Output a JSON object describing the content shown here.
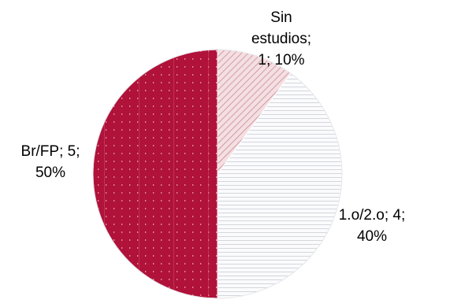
{
  "chart_data": {
    "type": "pie",
    "title": "",
    "slices": [
      {
        "label": "Sin estudios",
        "value": 1,
        "percent": "10%",
        "label_lines": [
          "Sin",
          "estudios;",
          "1; 10%"
        ],
        "color": "#e8c4c8",
        "pattern": "diagonal-stripes"
      },
      {
        "label": "1.o/2.o",
        "value": 4,
        "percent": "40%",
        "label_lines": [
          "1.o/2.o; 4;",
          "40%"
        ],
        "color": "#f2f2f4",
        "pattern": "horizontal-lines"
      },
      {
        "label": "Br/FP",
        "value": 5,
        "percent": "50%",
        "label_lines": [
          "Br/FP; 5;",
          "50%"
        ],
        "color": "#b0123a",
        "pattern": "dotted-grid"
      }
    ]
  }
}
